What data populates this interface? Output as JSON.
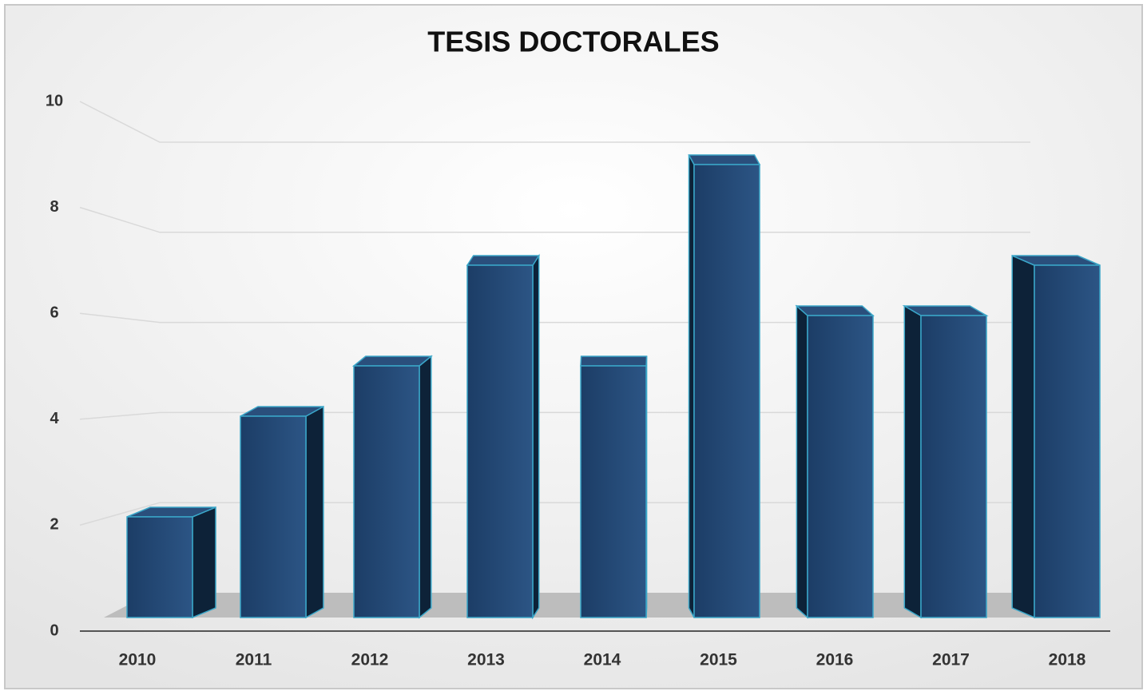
{
  "chart_data": {
    "type": "bar3d",
    "title": "TESIS DOCTORALES",
    "categories": [
      "2010",
      "2011",
      "2012",
      "2013",
      "2014",
      "2015",
      "2016",
      "2017",
      "2018"
    ],
    "values": [
      2,
      4,
      5,
      7,
      5,
      9,
      6,
      6,
      7
    ],
    "color": "#1f426e",
    "ylim": [
      0,
      10
    ],
    "yticks": [
      0,
      2,
      4,
      6,
      8,
      10
    ],
    "grid": true
  }
}
